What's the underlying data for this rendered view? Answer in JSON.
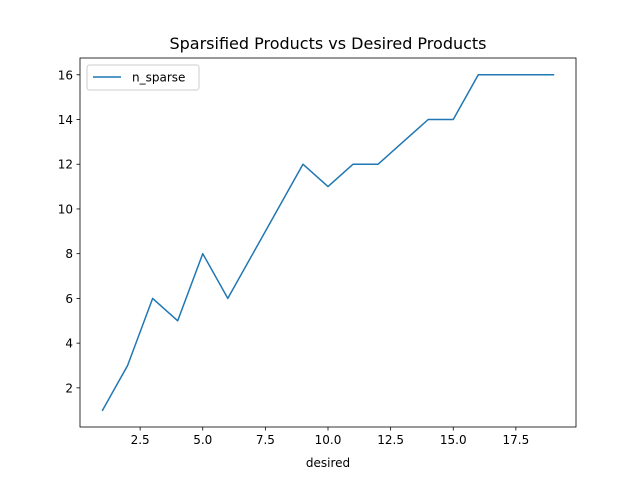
{
  "chart_data": {
    "type": "line",
    "title": "Sparsified Products vs Desired Products",
    "xlabel": "desired",
    "ylabel": "",
    "xlim": [
      0.1,
      19.9
    ],
    "ylim": [
      0.25,
      16.75
    ],
    "xticks": [
      2.5,
      5.0,
      7.5,
      10.0,
      12.5,
      15.0,
      17.5
    ],
    "xtick_labels": [
      "2.5",
      "5.0",
      "7.5",
      "10.0",
      "12.5",
      "15.0",
      "17.5"
    ],
    "yticks": [
      2,
      4,
      6,
      8,
      10,
      12,
      14,
      16
    ],
    "ytick_labels": [
      "2",
      "4",
      "6",
      "8",
      "10",
      "12",
      "14",
      "16"
    ],
    "grid": false,
    "legend_position": "top-left",
    "series": [
      {
        "name": "n_sparse",
        "color": "#1f77b4",
        "x": [
          1,
          2,
          3,
          4,
          5,
          6,
          7,
          8,
          9,
          10,
          11,
          12,
          13,
          14,
          15,
          16,
          17,
          18,
          19
        ],
        "y": [
          1,
          3,
          6,
          5,
          8,
          6,
          8,
          10,
          12,
          11,
          12,
          12,
          13,
          14,
          14,
          16,
          16,
          16,
          16
        ]
      }
    ]
  }
}
